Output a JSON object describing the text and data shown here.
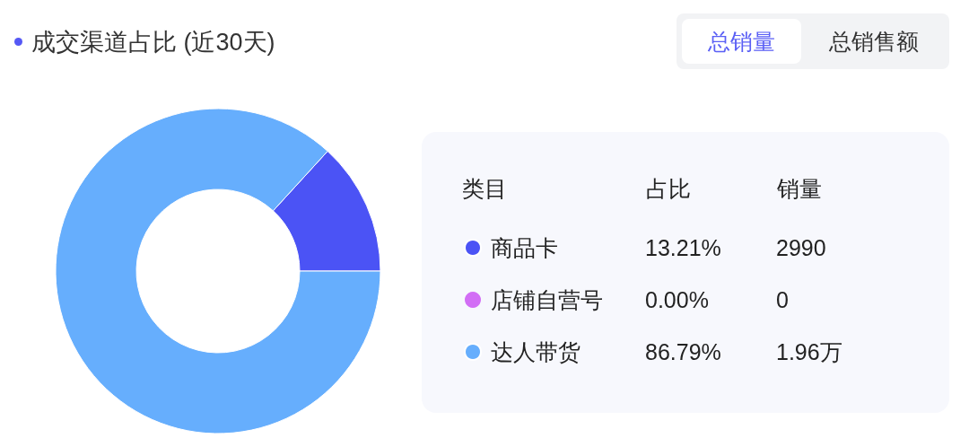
{
  "chart_data": {
    "type": "donut",
    "title": "成交渠道占比 (近30天)",
    "categories": [
      "商品卡",
      "店铺自营号",
      "达人带货"
    ],
    "values": [
      13.21,
      0,
      86.79
    ],
    "value_labels": [
      "13.21%",
      "0.00%",
      "86.79%"
    ],
    "colors": [
      "#4b53f5",
      "#d26ef5",
      "#66aefd"
    ],
    "legend": "right",
    "legend_title": "类目",
    "annotations": [
      "总销量",
      "总销售额",
      "占比",
      "销量",
      "2990",
      "0",
      "1.96万"
    ]
  }
}
